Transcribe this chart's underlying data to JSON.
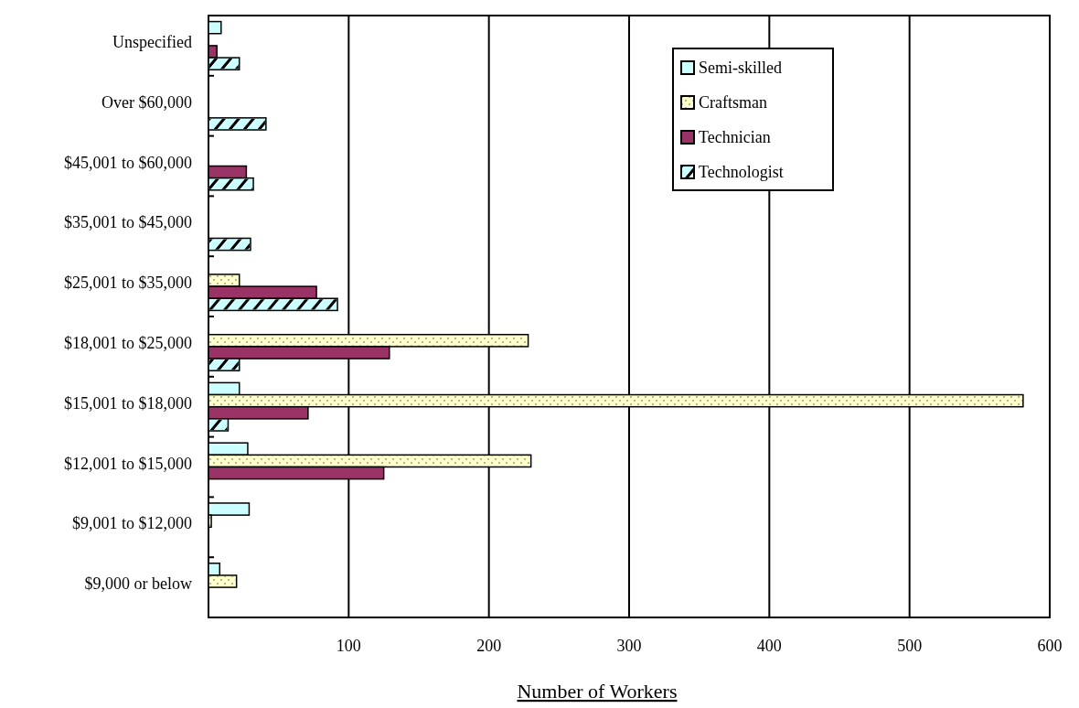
{
  "chart_data": {
    "type": "bar",
    "orientation": "horizontal",
    "xlabel": "Number of Workers",
    "categories": [
      "Unspecified",
      "Over $60,000",
      "$45,001 to $60,000",
      "$35,001 to $45,000",
      "$25,001 to $35,000",
      "$18,001 to $25,000",
      "$15,001 to $18,000",
      "$12,001 to $15,000",
      "$9,001 to $12,000",
      "$9,000 or below"
    ],
    "series": [
      {
        "name": "Semi-skilled",
        "color": "#ccffff",
        "values": [
          9,
          null,
          null,
          null,
          null,
          null,
          22,
          28,
          29,
          8
        ]
      },
      {
        "name": "Craftsman",
        "color": "#ffffcc",
        "values": [
          null,
          null,
          null,
          null,
          22,
          228,
          581,
          230,
          2,
          20
        ]
      },
      {
        "name": "Technician",
        "color": "#993366",
        "values": [
          6,
          null,
          27,
          null,
          77,
          129,
          71,
          125,
          null,
          null
        ]
      },
      {
        "name": "Technologist",
        "color": "#ccffff",
        "values": [
          22,
          41,
          32,
          30,
          92,
          22,
          14,
          null,
          null,
          null
        ]
      }
    ],
    "xlim": [
      0,
      600
    ],
    "xticks": [
      100,
      200,
      300,
      400,
      500,
      600
    ],
    "grid": "x",
    "legend": "top right"
  }
}
